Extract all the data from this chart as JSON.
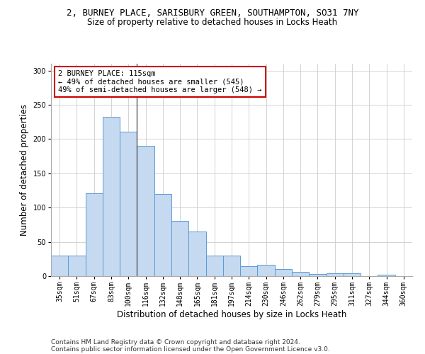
{
  "title_line1": "2, BURNEY PLACE, SARISBURY GREEN, SOUTHAMPTON, SO31 7NY",
  "title_line2": "Size of property relative to detached houses in Locks Heath",
  "xlabel": "Distribution of detached houses by size in Locks Heath",
  "ylabel": "Number of detached properties",
  "footer_line1": "Contains HM Land Registry data © Crown copyright and database right 2024.",
  "footer_line2": "Contains public sector information licensed under the Open Government Licence v3.0.",
  "categories": [
    "35sqm",
    "51sqm",
    "67sqm",
    "83sqm",
    "100sqm",
    "116sqm",
    "132sqm",
    "148sqm",
    "165sqm",
    "181sqm",
    "197sqm",
    "214sqm",
    "230sqm",
    "246sqm",
    "262sqm",
    "279sqm",
    "295sqm",
    "311sqm",
    "327sqm",
    "344sqm",
    "360sqm"
  ],
  "values": [
    30,
    30,
    121,
    232,
    211,
    190,
    120,
    81,
    65,
    30,
    30,
    14,
    17,
    10,
    6,
    3,
    4,
    4,
    0,
    2,
    0
  ],
  "bar_color": "#c5d9f0",
  "bar_edge_color": "#5b9bd5",
  "annotation_text": "2 BURNEY PLACE: 115sqm\n← 49% of detached houses are smaller (545)\n49% of semi-detached houses are larger (548) →",
  "annotation_box_color": "#ffffff",
  "annotation_box_edge_color": "#cc0000",
  "vline_x": 4.5,
  "ylim": [
    0,
    310
  ],
  "yticks": [
    0,
    50,
    100,
    150,
    200,
    250,
    300
  ],
  "grid_color": "#cccccc",
  "bg_color": "#ffffff",
  "title_fontsize": 9,
  "subtitle_fontsize": 8.5,
  "tick_fontsize": 7,
  "ylabel_fontsize": 8.5,
  "xlabel_fontsize": 8.5,
  "footer_fontsize": 6.5,
  "annotation_fontsize": 7.5
}
